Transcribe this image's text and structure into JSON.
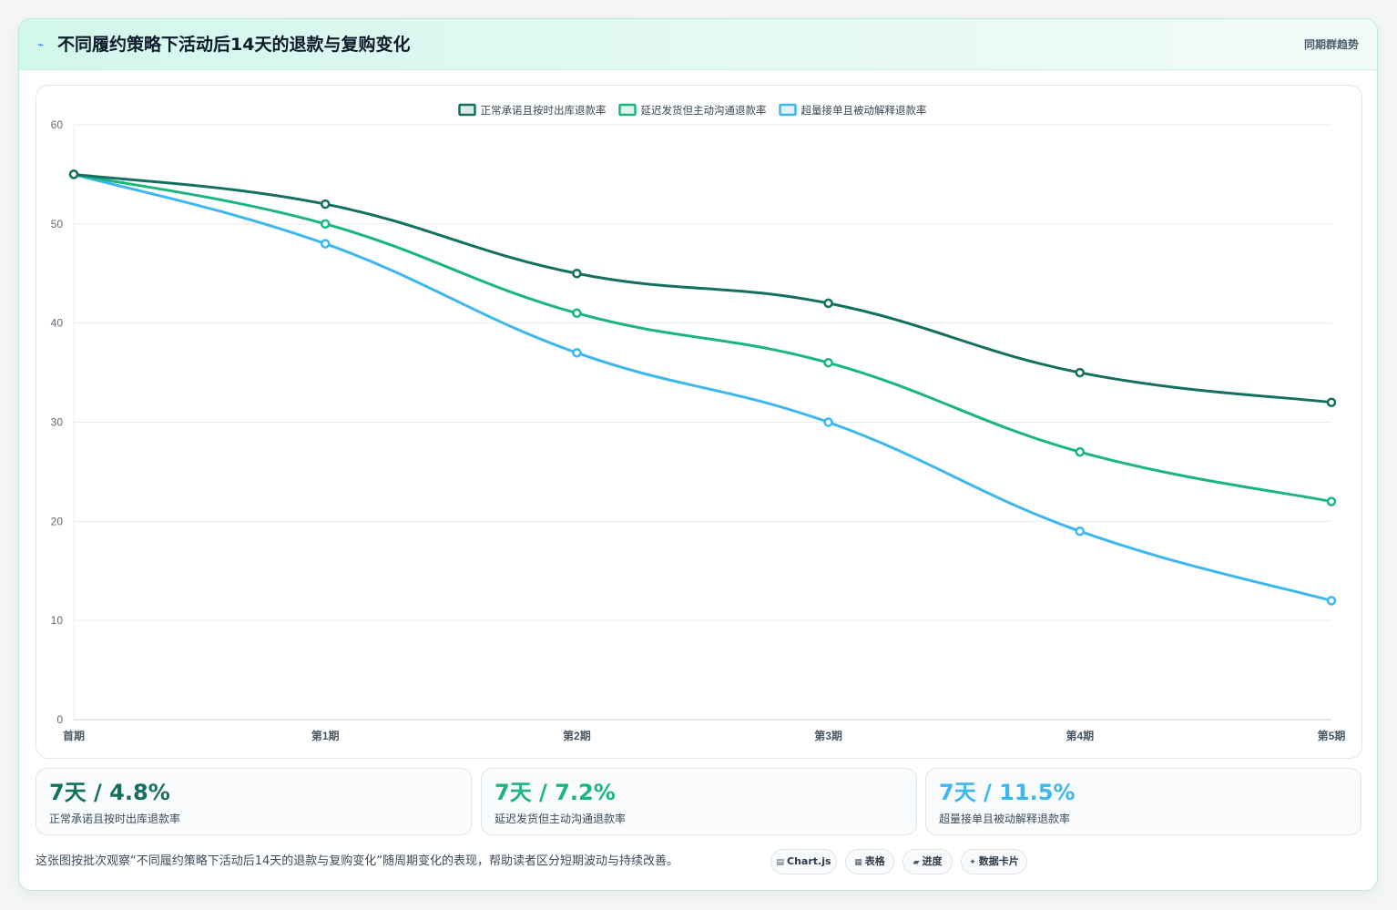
{
  "header": {
    "icon": "chart-icon",
    "title": "不同履约策略下活动后14天的退款与复购变化",
    "badge": "同期群趋势"
  },
  "chart_data": {
    "type": "line",
    "categories": [
      "首期",
      "第1期",
      "第2期",
      "第3期",
      "第4期",
      "第5期"
    ],
    "series": [
      {
        "name": "正常承诺且按时出库退款率",
        "color": "#13705f",
        "values": [
          55,
          52,
          45,
          42,
          35,
          32
        ]
      },
      {
        "name": "延迟发货但主动沟通退款率",
        "color": "#1bb67c",
        "values": [
          55,
          50,
          41,
          36,
          27,
          22
        ]
      },
      {
        "name": "超量接单且被动解释退款率",
        "color": "#3db7ef",
        "values": [
          55,
          48,
          37,
          30,
          19,
          12
        ]
      }
    ],
    "ylim": [
      0,
      60
    ],
    "yticks": [
      0,
      10,
      20,
      30,
      40,
      50,
      60
    ],
    "grid": true,
    "legend": "top-center"
  },
  "stats": [
    {
      "value": "7天 / 4.8%",
      "label": "正常承诺且按时出库退款率",
      "color": "#13705f"
    },
    {
      "value": "7天 / 7.2%",
      "label": "延迟发货但主动沟通退款率",
      "color": "#1bb67c"
    },
    {
      "value": "7天 / 11.5%",
      "label": "超量接单且被动解释退款率",
      "color": "#3db7ef"
    }
  ],
  "footer": {
    "text": "这张图按批次观察“不同履约策略下活动后14天的退款与复购变化”随周期变化的表现，帮助读者区分短期波动与持续改善。",
    "chips": [
      {
        "icon": "▤",
        "label": "Chart.js"
      },
      {
        "icon": "▦",
        "label": "表格"
      },
      {
        "icon": "▰",
        "label": "进度"
      },
      {
        "icon": "✦",
        "label": "数据卡片"
      }
    ]
  }
}
